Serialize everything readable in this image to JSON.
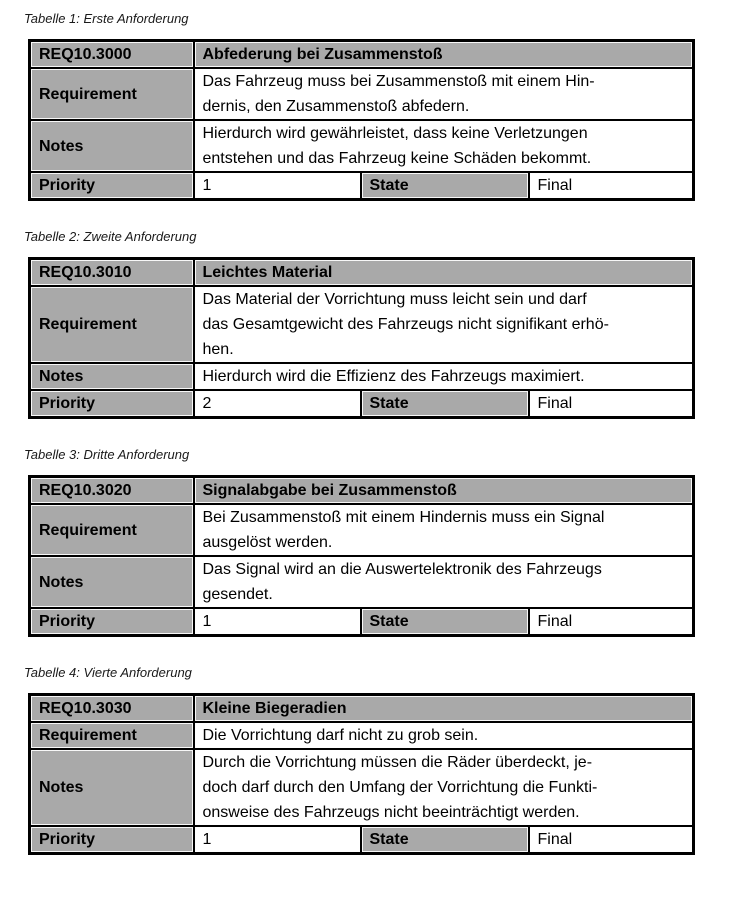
{
  "page": {
    "background": "#ffffff"
  },
  "colors": {
    "shaded_cell": "#a9a9a9",
    "table_border": "#000000",
    "text": "#000000"
  },
  "labels": {
    "requirement": "Requirement",
    "notes": "Notes",
    "priority": "Priority",
    "state": "State"
  },
  "tables": [
    {
      "caption": "Tabelle 1: Erste Anforderung",
      "id": "REQ10.3000",
      "title": "Abfederung bei Zusammenstoß",
      "requirement": "Das Fahrzeug muss bei Zusammenstoß mit einem Hin-\ndernis, den Zusammenstoß abfedern.",
      "notes": "Hierdurch wird gewährleistet, dass keine Verletzungen\nentstehen und das Fahrzeug keine Schäden bekommt.",
      "priority": "1",
      "state": "Final"
    },
    {
      "caption": "Tabelle 2: Zweite Anforderung",
      "id": "REQ10.3010",
      "title": "Leichtes Material",
      "requirement": "Das Material der Vorrichtung muss leicht sein und darf\ndas Gesamtgewicht des Fahrzeugs nicht signifikant erhö-\nhen.",
      "notes": "Hierdurch wird die Effizienz des Fahrzeugs maximiert.",
      "priority": "2",
      "state": "Final"
    },
    {
      "caption": "Tabelle 3: Dritte Anforderung",
      "id": "REQ10.3020",
      "title": "Signalabgabe bei Zusammenstoß",
      "requirement": "Bei Zusammenstoß mit einem Hindernis muss ein Signal\nausgelöst werden.",
      "notes": "Das Signal wird an die Auswertelektronik des Fahrzeugs\ngesendet.",
      "priority": "1",
      "state": "Final"
    },
    {
      "caption": "Tabelle 4: Vierte Anforderung",
      "id": "REQ10.3030",
      "title": "Kleine Biegeradien",
      "requirement": "Die Vorrichtung darf nicht zu grob sein.",
      "notes": "Durch die Vorrichtung müssen die Räder überdeckt, je-\ndoch darf durch den Umfang der Vorrichtung die Funkti-\nonsweise des Fahrzeugs nicht beeinträchtigt werden.",
      "priority": "1",
      "state": "Final"
    }
  ]
}
